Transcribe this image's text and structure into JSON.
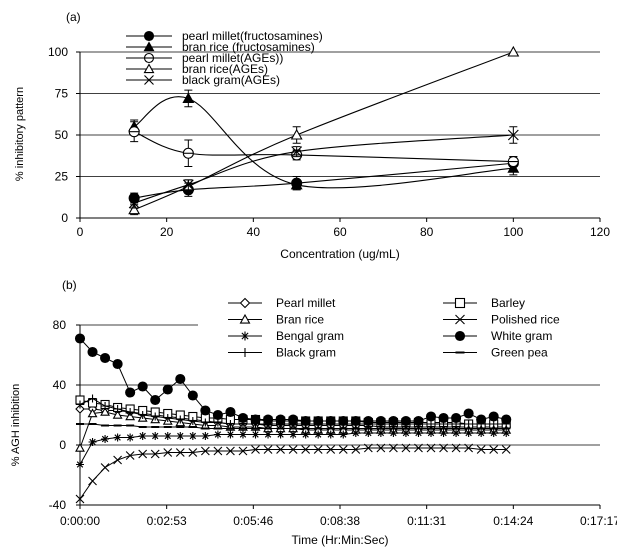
{
  "chart_data": [
    {
      "type": "line",
      "panel_label": "(a)",
      "xlabel": "Concentration (ug/mL)",
      "ylabel": "% inhibitory pattern",
      "xlim": [
        0,
        120
      ],
      "ylim": [
        0,
        100
      ],
      "xticks": [
        0,
        20,
        40,
        60,
        80,
        100,
        120
      ],
      "yticks": [
        0,
        25,
        50,
        75,
        100
      ],
      "grid": "horizontal",
      "legend_position": "top-left",
      "x": [
        12.5,
        25,
        50,
        100
      ],
      "series": [
        {
          "name": "pearl millet(fructosamines)",
          "marker": "filled-circle",
          "values": [
            12,
            17,
            21,
            33
          ],
          "errors": [
            3,
            4,
            4,
            4
          ]
        },
        {
          "name": "bran rice (fructosamines)",
          "marker": "filled-triangle",
          "values": [
            55,
            72,
            20,
            30
          ],
          "errors": [
            4,
            5,
            3,
            4
          ]
        },
        {
          "name": "pearl millet(AGEs))",
          "marker": "open-circle",
          "values": [
            52,
            39,
            38,
            34
          ],
          "errors": [
            6,
            8,
            3,
            3
          ]
        },
        {
          "name": "bran rice(AGEs)",
          "marker": "open-triangle",
          "values": [
            5,
            19,
            50,
            100
          ],
          "errors": [
            3,
            4,
            5,
            0
          ]
        },
        {
          "name": "black gram(AGEs)",
          "marker": "x",
          "values": [
            9,
            20,
            40,
            50
          ],
          "errors": [
            3,
            3,
            3,
            5
          ]
        }
      ]
    },
    {
      "type": "line",
      "panel_label": "(b)",
      "xlabel": "Time (Hr:Min:Sec)",
      "ylabel": "% AGH inhibition",
      "ylim": [
        -40,
        80
      ],
      "yticks": [
        -40,
        0,
        40,
        80
      ],
      "xticks": [
        "0:00:00",
        "0:02:53",
        "0:05:46",
        "0:08:38",
        "0:11:31",
        "0:14:24",
        "0:17:17"
      ],
      "x_range_seconds": [
        0,
        1037
      ],
      "x_seconds": [
        0,
        25,
        50,
        75,
        100,
        125,
        150,
        175,
        200,
        225,
        250,
        275,
        300,
        325,
        350,
        375,
        400,
        425,
        450,
        475,
        500,
        525,
        550,
        575,
        600,
        625,
        650,
        675,
        700,
        725,
        750,
        775,
        800,
        825,
        850
      ],
      "grid": "horizontal",
      "legend_position": "top",
      "series": [
        {
          "name": "Pearl millet",
          "marker": "open-diamond",
          "values": [
            24,
            24,
            23,
            23,
            22,
            21,
            20,
            19,
            18,
            17,
            16,
            15,
            14,
            14,
            14,
            13,
            13,
            13,
            13,
            13,
            13,
            13,
            13,
            13,
            12,
            12,
            12,
            12,
            12,
            12,
            12,
            12,
            12,
            12,
            12
          ]
        },
        {
          "name": "Barley",
          "marker": "open-square",
          "values": [
            30,
            28,
            27,
            25,
            24,
            23,
            22,
            21,
            20,
            19,
            18,
            18,
            17,
            17,
            17,
            16,
            16,
            16,
            16,
            16,
            16,
            16,
            16,
            15,
            15,
            15,
            15,
            15,
            15,
            15,
            15,
            14,
            14,
            14,
            14
          ]
        },
        {
          "name": "Bran rice",
          "marker": "open-triangle",
          "values": [
            -2,
            21,
            22,
            20,
            19,
            18,
            17,
            16,
            15,
            14,
            13,
            13,
            12,
            12,
            12,
            11,
            11,
            11,
            10,
            10,
            10,
            10,
            10,
            10,
            10,
            10,
            10,
            10,
            10,
            10,
            10,
            10,
            10,
            10,
            10
          ]
        },
        {
          "name": "Polished rice",
          "marker": "x",
          "values": [
            -36,
            -24,
            -15,
            -10,
            -7,
            -6,
            -6,
            -5,
            -5,
            -5,
            -4,
            -4,
            -4,
            -4,
            -3,
            -3,
            -3,
            -3,
            -3,
            -3,
            -3,
            -3,
            -3,
            -2,
            -2,
            -2,
            -2,
            -2,
            -2,
            -2,
            -2,
            -2,
            -3,
            -3,
            -3
          ]
        },
        {
          "name": "Bengal gram",
          "marker": "asterisk",
          "values": [
            -13,
            2,
            4,
            5,
            5,
            6,
            6,
            6,
            6,
            6,
            6,
            7,
            7,
            7,
            7,
            7,
            7,
            7,
            7,
            7,
            7,
            7,
            8,
            8,
            8,
            8,
            8,
            8,
            8,
            8,
            8,
            8,
            8,
            8,
            8
          ]
        },
        {
          "name": "White gram",
          "marker": "filled-circle",
          "values": [
            71,
            62,
            58,
            54,
            35,
            39,
            30,
            37,
            44,
            33,
            23,
            20,
            22,
            18,
            17,
            17,
            17,
            17,
            16,
            16,
            16,
            16,
            16,
            16,
            16,
            16,
            16,
            16,
            19,
            18,
            18,
            21,
            17,
            19,
            17
          ]
        },
        {
          "name": "Black gram",
          "marker": "plus",
          "values": [
            27,
            31,
            26,
            24,
            22,
            20,
            19,
            18,
            17,
            16,
            15,
            15,
            14,
            14,
            14,
            14,
            14,
            14,
            14,
            14,
            14,
            14,
            14,
            14,
            14,
            14,
            14,
            14,
            14,
            14,
            14,
            14,
            14,
            14,
            14
          ]
        },
        {
          "name": "Green pea",
          "marker": "dash",
          "values": [
            14,
            14,
            13,
            13,
            13,
            12,
            12,
            12,
            12,
            12,
            11,
            11,
            11,
            11,
            11,
            11,
            11,
            11,
            11,
            11,
            11,
            11,
            11,
            11,
            11,
            11,
            11,
            11,
            11,
            11,
            11,
            11,
            11,
            11,
            11
          ]
        }
      ]
    }
  ]
}
